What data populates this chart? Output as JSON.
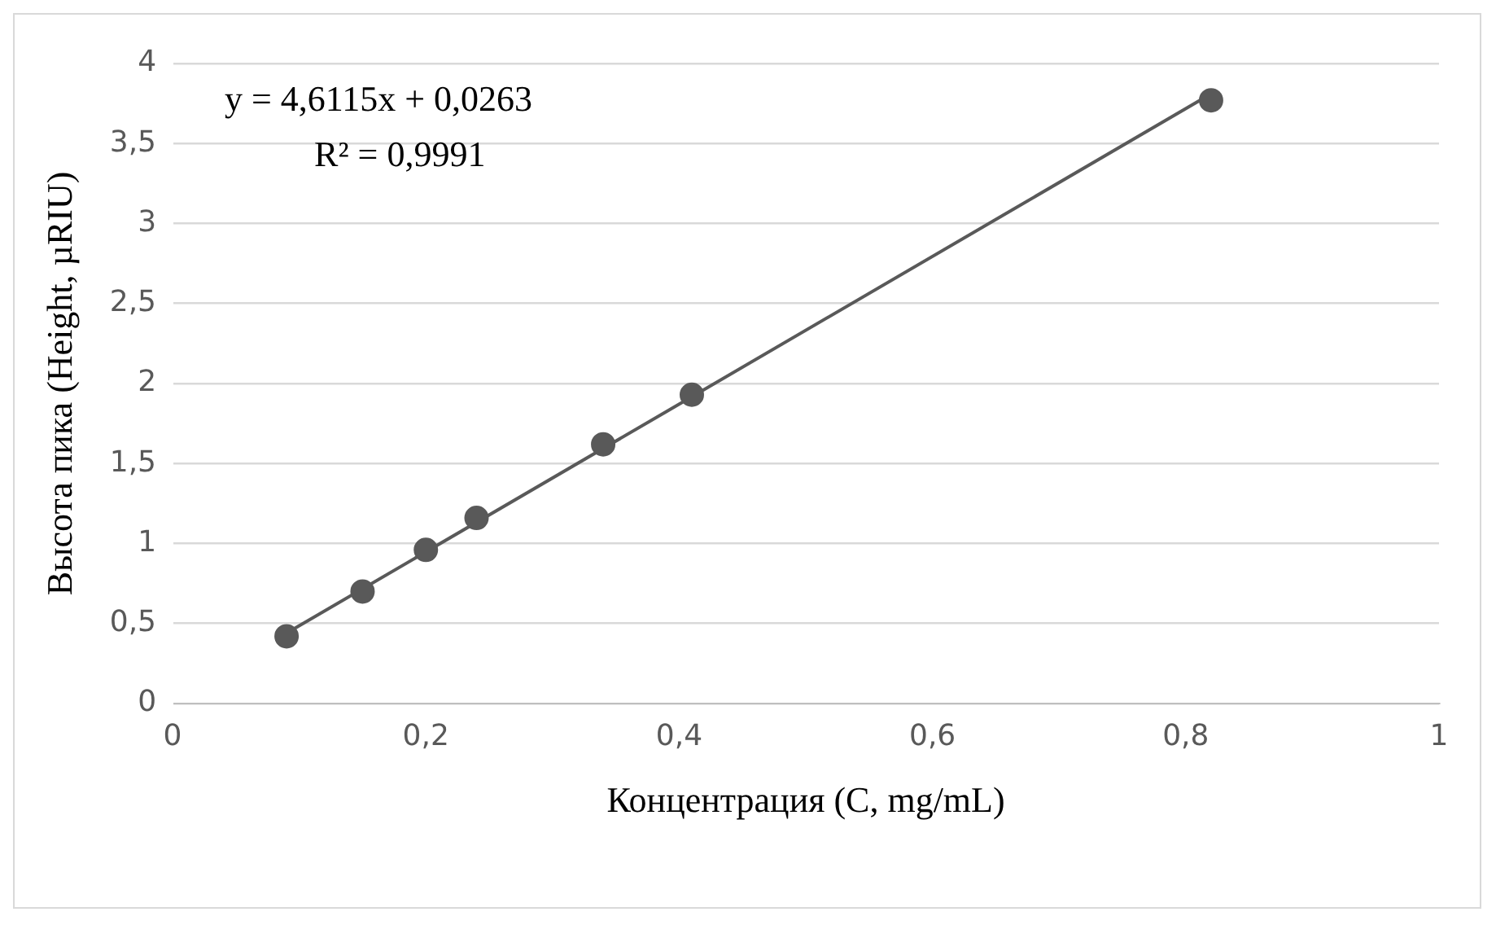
{
  "chart_data": {
    "type": "scatter",
    "xlabel": "Концентрация (C, mg/mL)",
    "ylabel": "Высота пика (Height, µRIU)",
    "annotations": [
      "y = 4,6115x + 0,0263",
      "R² = 0,9991"
    ],
    "series": [
      {
        "type": "scatter",
        "color": "#595959",
        "x": [
          0.09,
          0.15,
          0.2,
          0.24,
          0.34,
          0.41,
          0.82
        ],
        "values": [
          0.42,
          0.7,
          0.96,
          1.16,
          1.62,
          1.93,
          3.77
        ],
        "marker": "circle"
      },
      {
        "type": "line",
        "color": "#595959",
        "x": [
          0.09,
          0.82
        ],
        "values": [
          0.44,
          3.81
        ],
        "marker": "none",
        "line_style": "solid"
      }
    ],
    "xlim": [
      0,
      1
    ],
    "ylim": [
      0,
      4
    ],
    "xticks": [
      0,
      {
        "value": 0.2,
        "label": "0,2"
      },
      {
        "value": 0.4,
        "label": "0,4"
      },
      {
        "value": 0.6,
        "label": "0,6"
      },
      {
        "value": 0.8,
        "label": "0,8"
      },
      1
    ],
    "yticks": [
      0,
      {
        "value": 0.5,
        "label": "0,5"
      },
      1,
      {
        "value": 1.5,
        "label": "1,5"
      },
      2,
      {
        "value": 2.5,
        "label": "2,5"
      },
      3,
      {
        "value": 3.5,
        "label": "3,5"
      },
      4
    ],
    "grid": "y"
  }
}
